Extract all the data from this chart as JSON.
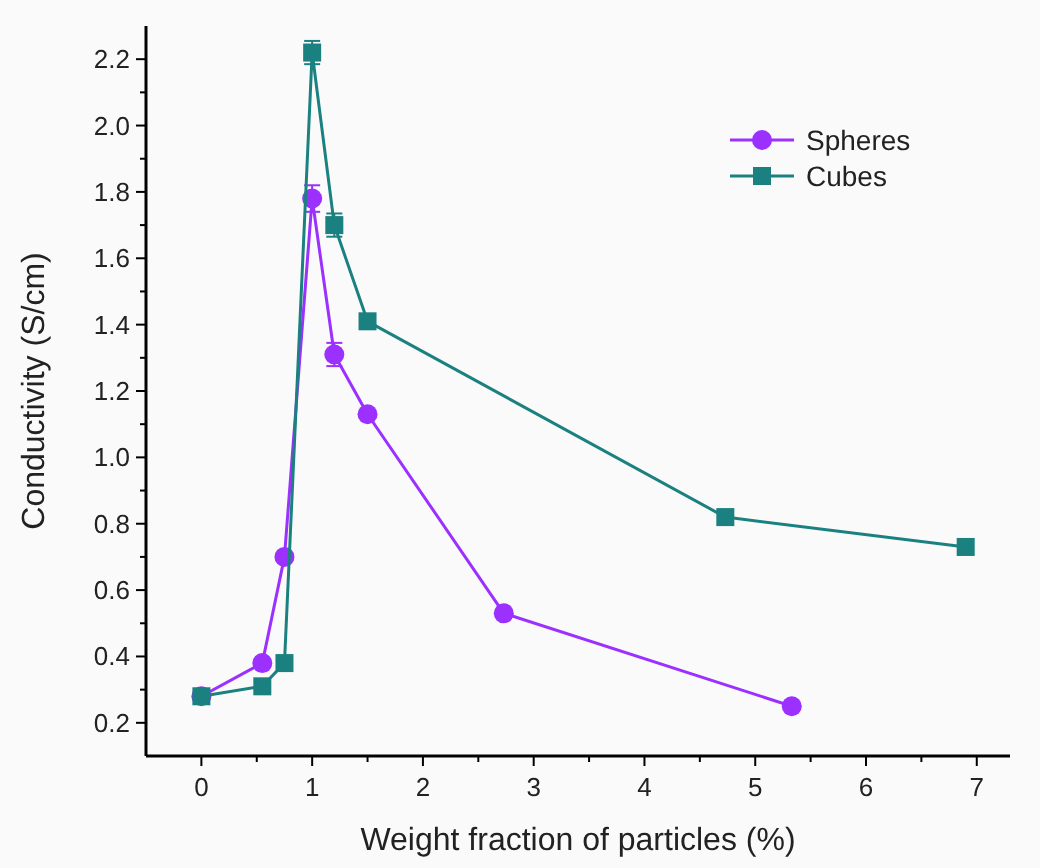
{
  "chart_data": {
    "type": "line",
    "xlabel": "Weight fraction of particles (%)",
    "ylabel": "Conductivity (S/cm)",
    "xlim": [
      -0.5,
      7.3
    ],
    "ylim": [
      0.1,
      2.3
    ],
    "xticks": [
      0,
      {
        "value": 0.5,
        "label": null
      },
      1,
      {
        "value": 1.5,
        "label": null
      },
      2,
      {
        "value": 2.5,
        "label": null
      },
      3,
      {
        "value": 3.5,
        "label": null
      },
      4,
      {
        "value": 4.5,
        "label": null
      },
      5,
      {
        "value": 5.5,
        "label": null
      },
      6,
      {
        "value": 6.5,
        "label": null
      },
      7
    ],
    "yticks": [
      {
        "value": 0.2,
        "label": "0.2"
      },
      {
        "value": 0.3,
        "label": null
      },
      {
        "value": 0.4,
        "label": "0.4"
      },
      {
        "value": 0.5,
        "label": null
      },
      {
        "value": 0.6,
        "label": "0.6"
      },
      {
        "value": 0.7,
        "label": null
      },
      {
        "value": 0.8,
        "label": "0.8"
      },
      {
        "value": 0.9,
        "label": null
      },
      {
        "value": 1.0,
        "label": "1.0"
      },
      {
        "value": 1.1,
        "label": null
      },
      {
        "value": 1.2,
        "label": "1.2"
      },
      {
        "value": 1.3,
        "label": null
      },
      {
        "value": 1.4,
        "label": "1.4"
      },
      {
        "value": 1.5,
        "label": null
      },
      {
        "value": 1.6,
        "label": "1.6"
      },
      {
        "value": 1.7,
        "label": null
      },
      {
        "value": 1.8,
        "label": "1.8"
      },
      {
        "value": 1.9,
        "label": null
      },
      {
        "value": 2.0,
        "label": "2.0"
      },
      {
        "value": 2.1,
        "label": null
      },
      {
        "value": 2.2,
        "label": "2.2"
      }
    ],
    "grid": false,
    "legend": "top right",
    "series": [
      {
        "name": "Spheres",
        "color": "#9b30ff",
        "marker": "circle",
        "x": [
          0,
          0.55,
          0.75,
          1.0,
          1.2,
          1.5,
          2.73,
          5.33
        ],
        "values": [
          0.28,
          0.38,
          0.7,
          1.78,
          1.31,
          1.13,
          0.53,
          0.25
        ],
        "errors": [
          null,
          null,
          null,
          0.04,
          0.035,
          null,
          null,
          null
        ]
      },
      {
        "name": "Cubes",
        "color": "#1a8080",
        "marker": "square",
        "x": [
          0,
          0.55,
          0.75,
          1.0,
          1.2,
          1.5,
          4.73,
          6.9
        ],
        "values": [
          0.28,
          0.31,
          0.38,
          2.22,
          1.7,
          1.41,
          0.82,
          0.73
        ],
        "errors": [
          null,
          null,
          null,
          0.035,
          0.035,
          null,
          null,
          null
        ]
      }
    ]
  }
}
